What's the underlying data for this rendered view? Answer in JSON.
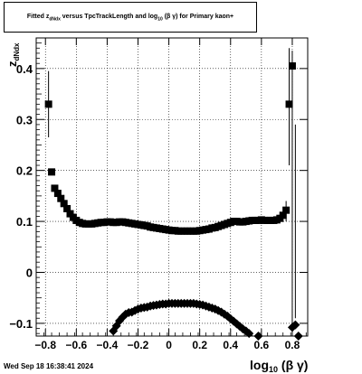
{
  "title": {
    "prefix": "Fitted  z",
    "sub1": "dNdx",
    "middle": "  versus TpcTrackLength and log",
    "sub2": "10",
    "suffix": " (β γ) for Primary kaon+"
  },
  "datestamp": "Wed Sep 18 16:38:41 2024",
  "chart_data": {
    "type": "scatter",
    "title": "Fitted z_dNdx versus TpcTrackLength and log10 (β γ) for Primary kaon+",
    "xlabel": "log10 (β γ)",
    "ylabel": "z_dNdx",
    "xlim": [
      -0.86,
      0.9
    ],
    "ylim": [
      -0.125,
      0.46
    ],
    "grid": true,
    "x_ticks": [
      -0.8,
      -0.6,
      -0.4,
      -0.2,
      0,
      0.2,
      0.4,
      0.6,
      0.8
    ],
    "x_tick_labels": [
      "−0.8",
      "−0.6",
      "−0.4",
      "−0.2",
      "0",
      "0.2",
      "0.4",
      "0.6",
      "0.8"
    ],
    "y_ticks": [
      -0.1,
      0,
      0.1,
      0.2,
      0.3,
      0.4
    ],
    "y_tick_labels": [
      "−0.1",
      "0",
      "0.1",
      "0.2",
      "0.3",
      "0.4"
    ],
    "series": [
      {
        "marker": "square",
        "points": [
          [
            -0.78,
            0.33
          ],
          [
            -0.76,
            0.197
          ],
          [
            -0.74,
            0.165
          ],
          [
            -0.72,
            0.155
          ],
          [
            -0.7,
            0.145
          ],
          [
            -0.68,
            0.135
          ],
          [
            -0.66,
            0.125
          ],
          [
            -0.64,
            0.115
          ],
          [
            -0.62,
            0.108
          ],
          [
            -0.6,
            0.102
          ],
          [
            -0.58,
            0.098
          ],
          [
            -0.56,
            0.096
          ],
          [
            -0.54,
            0.095
          ],
          [
            -0.52,
            0.095
          ],
          [
            -0.5,
            0.095
          ],
          [
            -0.48,
            0.096
          ],
          [
            -0.46,
            0.097
          ],
          [
            -0.44,
            0.098
          ],
          [
            -0.42,
            0.098
          ],
          [
            -0.4,
            0.099
          ],
          [
            -0.38,
            0.099
          ],
          [
            -0.36,
            0.098
          ],
          [
            -0.34,
            0.098
          ],
          [
            -0.32,
            0.099
          ],
          [
            -0.3,
            0.099
          ],
          [
            -0.28,
            0.098
          ],
          [
            -0.26,
            0.097
          ],
          [
            -0.24,
            0.096
          ],
          [
            -0.22,
            0.095
          ],
          [
            -0.2,
            0.094
          ],
          [
            -0.18,
            0.093
          ],
          [
            -0.16,
            0.092
          ],
          [
            -0.14,
            0.091
          ],
          [
            -0.12,
            0.089
          ],
          [
            -0.1,
            0.088
          ],
          [
            -0.08,
            0.087
          ],
          [
            -0.06,
            0.086
          ],
          [
            -0.04,
            0.085
          ],
          [
            -0.02,
            0.084
          ],
          [
            0.0,
            0.083
          ],
          [
            0.02,
            0.082
          ],
          [
            0.04,
            0.082
          ],
          [
            0.06,
            0.081
          ],
          [
            0.08,
            0.081
          ],
          [
            0.1,
            0.081
          ],
          [
            0.12,
            0.081
          ],
          [
            0.14,
            0.081
          ],
          [
            0.16,
            0.081
          ],
          [
            0.18,
            0.081
          ],
          [
            0.2,
            0.082
          ],
          [
            0.22,
            0.083
          ],
          [
            0.24,
            0.084
          ],
          [
            0.26,
            0.085
          ],
          [
            0.28,
            0.087
          ],
          [
            0.3,
            0.088
          ],
          [
            0.32,
            0.09
          ],
          [
            0.34,
            0.092
          ],
          [
            0.36,
            0.094
          ],
          [
            0.38,
            0.096
          ],
          [
            0.4,
            0.098
          ],
          [
            0.42,
            0.1
          ],
          [
            0.44,
            0.1
          ],
          [
            0.46,
            0.099
          ],
          [
            0.48,
            0.099
          ],
          [
            0.5,
            0.1
          ],
          [
            0.52,
            0.101
          ],
          [
            0.54,
            0.102
          ],
          [
            0.56,
            0.102
          ],
          [
            0.58,
            0.102
          ],
          [
            0.6,
            0.103
          ],
          [
            0.62,
            0.102
          ],
          [
            0.64,
            0.102
          ],
          [
            0.66,
            0.102
          ],
          [
            0.68,
            0.102
          ],
          [
            0.7,
            0.103
          ],
          [
            0.72,
            0.106
          ],
          [
            0.74,
            0.112
          ],
          [
            0.76,
            0.122
          ],
          [
            0.78,
            0.33
          ],
          [
            0.8,
            0.405
          ]
        ],
        "error_bars": [
          {
            "x": -0.78,
            "low": 0.265,
            "high": 0.395
          },
          {
            "x": 0.76,
            "low": 0.1,
            "high": 0.14
          },
          {
            "x": 0.78,
            "low": 0.21,
            "high": 0.44
          },
          {
            "x": 0.8,
            "low": -0.1,
            "high": 0.435
          },
          {
            "x": 0.82,
            "low": -0.09,
            "high": 0.29
          }
        ]
      },
      {
        "marker": "diamond",
        "points": [
          [
            -0.36,
            -0.115
          ],
          [
            -0.34,
            -0.105
          ],
          [
            -0.32,
            -0.095
          ],
          [
            -0.3,
            -0.088
          ],
          [
            -0.28,
            -0.082
          ],
          [
            -0.26,
            -0.079
          ],
          [
            -0.24,
            -0.078
          ],
          [
            -0.22,
            -0.075
          ],
          [
            -0.2,
            -0.072
          ],
          [
            -0.18,
            -0.07
          ],
          [
            -0.16,
            -0.069
          ],
          [
            -0.14,
            -0.068
          ],
          [
            -0.12,
            -0.066
          ],
          [
            -0.1,
            -0.065
          ],
          [
            -0.08,
            -0.064
          ],
          [
            -0.06,
            -0.063
          ],
          [
            -0.04,
            -0.062
          ],
          [
            -0.02,
            -0.062
          ],
          [
            0.0,
            -0.061
          ],
          [
            0.02,
            -0.061
          ],
          [
            0.04,
            -0.061
          ],
          [
            0.06,
            -0.061
          ],
          [
            0.08,
            -0.061
          ],
          [
            0.1,
            -0.061
          ],
          [
            0.12,
            -0.061
          ],
          [
            0.14,
            -0.061
          ],
          [
            0.16,
            -0.061
          ],
          [
            0.18,
            -0.062
          ],
          [
            0.2,
            -0.063
          ],
          [
            0.22,
            -0.064
          ],
          [
            0.24,
            -0.066
          ],
          [
            0.26,
            -0.068
          ],
          [
            0.28,
            -0.07
          ],
          [
            0.3,
            -0.072
          ],
          [
            0.32,
            -0.075
          ],
          [
            0.34,
            -0.078
          ],
          [
            0.36,
            -0.082
          ],
          [
            0.38,
            -0.086
          ],
          [
            0.4,
            -0.091
          ],
          [
            0.42,
            -0.096
          ],
          [
            0.44,
            -0.101
          ],
          [
            0.46,
            -0.106
          ],
          [
            0.48,
            -0.111
          ],
          [
            0.5,
            -0.115
          ],
          [
            0.52,
            -0.12
          ],
          [
            0.58,
            -0.125
          ],
          [
            0.8,
            -0.108
          ],
          [
            0.82,
            -0.103
          ],
          [
            0.84,
            -0.125
          ]
        ]
      }
    ]
  }
}
